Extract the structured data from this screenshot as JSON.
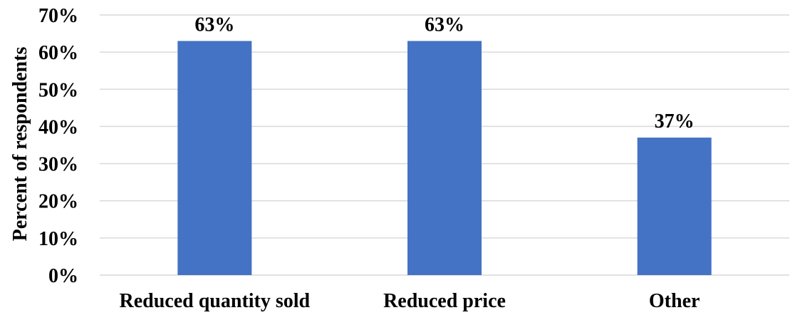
{
  "chart_data": {
    "type": "bar",
    "categories": [
      "Reduced quantity sold",
      "Reduced price",
      "Other"
    ],
    "values": [
      63,
      63,
      37
    ],
    "data_labels": [
      "63%",
      "63%",
      "37%"
    ],
    "title": "",
    "xlabel": "",
    "ylabel": "Percent of respondents",
    "ylim": [
      0,
      70
    ],
    "yticks": [
      0,
      10,
      20,
      30,
      40,
      50,
      60,
      70
    ],
    "ytick_labels": [
      "0%",
      "10%",
      "20%",
      "30%",
      "40%",
      "50%",
      "60%",
      "70%"
    ],
    "grid": true,
    "legend": "none",
    "bar_color": "#4472c4",
    "grid_color": "#d9d9d9"
  }
}
